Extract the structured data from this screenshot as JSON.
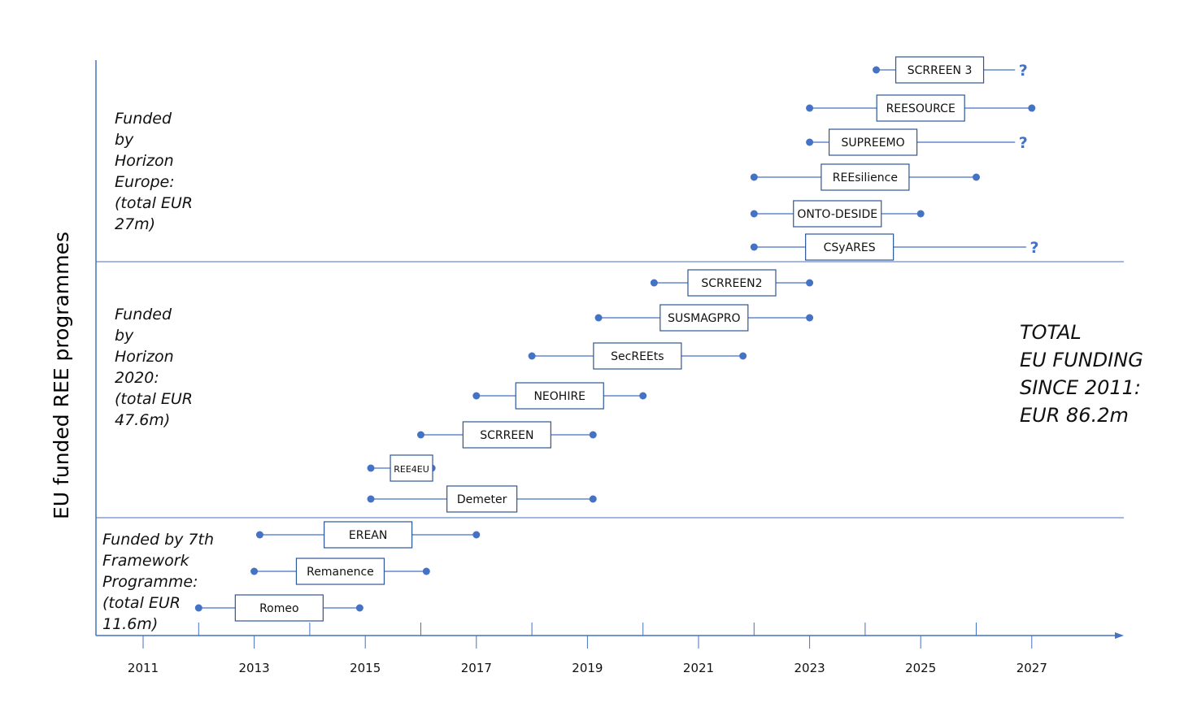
{
  "chart_data": {
    "type": "timeline",
    "ylabel": "EU funded REE programmes",
    "x_ticks": [
      2011,
      2013,
      2015,
      2017,
      2019,
      2021,
      2023,
      2025,
      2027
    ],
    "xlim": [
      2011,
      2027
    ],
    "total_text": "TOTAL\nEU FUNDING\nSINCE 2011:\nEUR 86.2m",
    "colors": {
      "accent": "#4472c4",
      "axis": "#4472c4",
      "box_border": "#2e5597"
    },
    "sections": [
      {
        "label": "Funded\nby\nHorizon\nEurope:\n(total EUR\n27m)",
        "programmes": [
          {
            "name": "SCRREEN 3",
            "start": 2024.2,
            "end": 2026.7,
            "open_ended": true
          },
          {
            "name": "REESOURCE",
            "start": 2023.0,
            "end": 2027.0,
            "open_ended": false
          },
          {
            "name": "SUPREEMO",
            "start": 2023.0,
            "end": 2026.7,
            "open_ended": true
          },
          {
            "name": "REEsilience",
            "start": 2022.0,
            "end": 2026.0,
            "open_ended": false
          },
          {
            "name": "ONTO-DESIDE",
            "start": 2022.0,
            "end": 2025.0,
            "open_ended": false
          },
          {
            "name": "CSyARES",
            "start": 2022.0,
            "end": 2026.9,
            "open_ended": true
          }
        ]
      },
      {
        "label": "Funded\nby\nHorizon\n2020:\n(total EUR\n47.6m)",
        "programmes": [
          {
            "name": "SCRREEN2",
            "start": 2020.2,
            "end": 2023.0,
            "open_ended": false
          },
          {
            "name": "SUSMAGPRO",
            "start": 2019.2,
            "end": 2023.0,
            "open_ended": false
          },
          {
            "name": "SecREEts",
            "start": 2018.0,
            "end": 2021.8,
            "open_ended": false
          },
          {
            "name": "NEOHIRE",
            "start": 2017.0,
            "end": 2020.0,
            "open_ended": false
          },
          {
            "name": "SCRREEN",
            "start": 2016.0,
            "end": 2019.1,
            "open_ended": false
          },
          {
            "name": "REE4EU",
            "start": 2015.1,
            "end": 2016.2,
            "open_ended": false
          },
          {
            "name": "Demeter",
            "start": 2015.1,
            "end": 2019.1,
            "open_ended": false
          }
        ]
      },
      {
        "label": "Funded by 7th\nFramework\nProgramme:\n (total EUR\n11.6m)",
        "programmes": [
          {
            "name": "EREAN",
            "start": 2013.1,
            "end": 2017.0,
            "open_ended": false
          },
          {
            "name": "Remanence",
            "start": 2013.0,
            "end": 2016.1,
            "open_ended": false
          },
          {
            "name": "Romeo",
            "start": 2012.0,
            "end": 2014.9,
            "open_ended": false
          }
        ]
      }
    ],
    "question_mark": "?"
  }
}
